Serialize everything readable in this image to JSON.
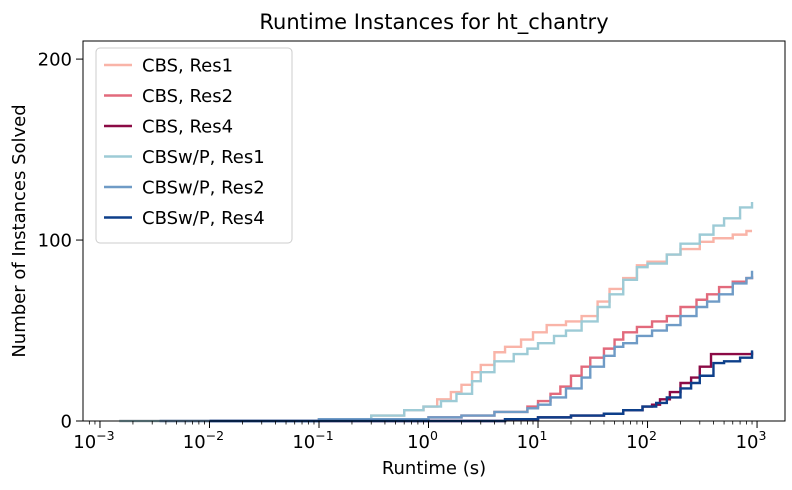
{
  "chart_data": {
    "type": "line",
    "title": "Runtime Instances for ht_chantry",
    "xlabel": "Runtime (s)",
    "ylabel": "Number of Instances Solved",
    "xscale": "log",
    "xlim": [
      0.0007,
      1800
    ],
    "ylim": [
      0,
      210
    ],
    "x_ticks": [
      {
        "base": "10",
        "exp": "−3",
        "value": 0.001
      },
      {
        "base": "10",
        "exp": "−2",
        "value": 0.01
      },
      {
        "base": "10",
        "exp": "−1",
        "value": 0.1
      },
      {
        "base": "10",
        "exp": "0",
        "value": 1
      },
      {
        "base": "10",
        "exp": "1",
        "value": 10
      },
      {
        "base": "10",
        "exp": "2",
        "value": 100
      },
      {
        "base": "10",
        "exp": "3",
        "value": 1000
      }
    ],
    "y_ticks": [
      {
        "label": "0",
        "value": 0
      },
      {
        "label": "100",
        "value": 100
      },
      {
        "label": "200",
        "value": 200
      }
    ],
    "grid": false,
    "legend_position": "top-left",
    "series": [
      {
        "name": "CBS, Res1",
        "color": "#f9b4a8",
        "points": [
          [
            0.0015,
            0
          ],
          [
            0.01,
            0
          ],
          [
            0.1,
            1
          ],
          [
            0.3,
            3
          ],
          [
            0.6,
            6
          ],
          [
            0.9,
            8
          ],
          [
            1.2,
            12
          ],
          [
            1.6,
            16
          ],
          [
            2,
            20
          ],
          [
            2.5,
            27
          ],
          [
            3,
            31
          ],
          [
            4,
            38
          ],
          [
            5,
            41
          ],
          [
            7,
            45
          ],
          [
            9,
            49
          ],
          [
            12,
            53
          ],
          [
            18,
            55
          ],
          [
            25,
            58
          ],
          [
            35,
            66
          ],
          [
            45,
            73
          ],
          [
            60,
            79
          ],
          [
            80,
            86
          ],
          [
            100,
            88
          ],
          [
            150,
            92
          ],
          [
            200,
            95
          ],
          [
            300,
            99
          ],
          [
            400,
            101
          ],
          [
            500,
            101
          ],
          [
            600,
            103
          ],
          [
            800,
            105
          ],
          [
            900,
            105
          ]
        ]
      },
      {
        "name": "CBS, Res2",
        "color": "#e26a7c",
        "points": [
          [
            0.0035,
            0
          ],
          [
            0.01,
            0
          ],
          [
            0.1,
            1
          ],
          [
            0.5,
            1
          ],
          [
            1,
            2
          ],
          [
            2,
            3
          ],
          [
            4,
            5
          ],
          [
            8,
            8
          ],
          [
            10,
            11
          ],
          [
            13,
            15
          ],
          [
            16,
            19
          ],
          [
            20,
            25
          ],
          [
            25,
            30
          ],
          [
            30,
            35
          ],
          [
            40,
            40
          ],
          [
            50,
            45
          ],
          [
            60,
            49
          ],
          [
            80,
            52
          ],
          [
            110,
            55
          ],
          [
            150,
            58
          ],
          [
            200,
            63
          ],
          [
            280,
            67
          ],
          [
            350,
            70
          ],
          [
            450,
            74
          ],
          [
            600,
            77
          ],
          [
            800,
            79
          ],
          [
            900,
            80
          ]
        ]
      },
      {
        "name": "CBS, Res4",
        "color": "#8b0a45",
        "points": [
          [
            0.01,
            0
          ],
          [
            1,
            0
          ],
          [
            5,
            1
          ],
          [
            10,
            2
          ],
          [
            20,
            3
          ],
          [
            40,
            4
          ],
          [
            60,
            6
          ],
          [
            90,
            8
          ],
          [
            110,
            9
          ],
          [
            130,
            12
          ],
          [
            160,
            16
          ],
          [
            200,
            21
          ],
          [
            250,
            24
          ],
          [
            300,
            30
          ],
          [
            380,
            37
          ],
          [
            500,
            37
          ],
          [
            700,
            37
          ],
          [
            900,
            38
          ]
        ]
      },
      {
        "name": "CBSw/P, Res1",
        "color": "#9dcbd6",
        "points": [
          [
            0.0015,
            0
          ],
          [
            0.01,
            0
          ],
          [
            0.1,
            1
          ],
          [
            0.3,
            3
          ],
          [
            0.6,
            6
          ],
          [
            0.9,
            8
          ],
          [
            1.3,
            11
          ],
          [
            1.8,
            15
          ],
          [
            2.5,
            22
          ],
          [
            3,
            27
          ],
          [
            4,
            33
          ],
          [
            6,
            37
          ],
          [
            8,
            40
          ],
          [
            10,
            43
          ],
          [
            14,
            47
          ],
          [
            18,
            50
          ],
          [
            25,
            55
          ],
          [
            35,
            63
          ],
          [
            45,
            70
          ],
          [
            60,
            78
          ],
          [
            80,
            85
          ],
          [
            100,
            87
          ],
          [
            150,
            92
          ],
          [
            200,
            98
          ],
          [
            300,
            103
          ],
          [
            400,
            108
          ],
          [
            500,
            112
          ],
          [
            700,
            118
          ],
          [
            900,
            121
          ]
        ]
      },
      {
        "name": "CBSw/P, Res2",
        "color": "#6f9bc6",
        "points": [
          [
            0.0035,
            0
          ],
          [
            0.01,
            0
          ],
          [
            0.1,
            1
          ],
          [
            0.5,
            1
          ],
          [
            1,
            2
          ],
          [
            2,
            3
          ],
          [
            4,
            5
          ],
          [
            8,
            7
          ],
          [
            10,
            9
          ],
          [
            13,
            13
          ],
          [
            18,
            18
          ],
          [
            25,
            24
          ],
          [
            30,
            30
          ],
          [
            40,
            36
          ],
          [
            50,
            41
          ],
          [
            60,
            43
          ],
          [
            80,
            47
          ],
          [
            110,
            50
          ],
          [
            150,
            53
          ],
          [
            200,
            58
          ],
          [
            280,
            63
          ],
          [
            350,
            66
          ],
          [
            450,
            70
          ],
          [
            600,
            76
          ],
          [
            800,
            79
          ],
          [
            900,
            83
          ]
        ]
      },
      {
        "name": "CBSw/P, Res4",
        "color": "#0d3f8a",
        "points": [
          [
            0.01,
            0
          ],
          [
            1,
            0
          ],
          [
            5,
            1
          ],
          [
            10,
            2
          ],
          [
            20,
            3
          ],
          [
            40,
            4
          ],
          [
            60,
            6
          ],
          [
            90,
            8
          ],
          [
            120,
            10
          ],
          [
            150,
            13
          ],
          [
            200,
            18
          ],
          [
            250,
            21
          ],
          [
            300,
            25
          ],
          [
            400,
            32
          ],
          [
            500,
            33
          ],
          [
            700,
            35
          ],
          [
            900,
            39
          ]
        ]
      }
    ]
  }
}
